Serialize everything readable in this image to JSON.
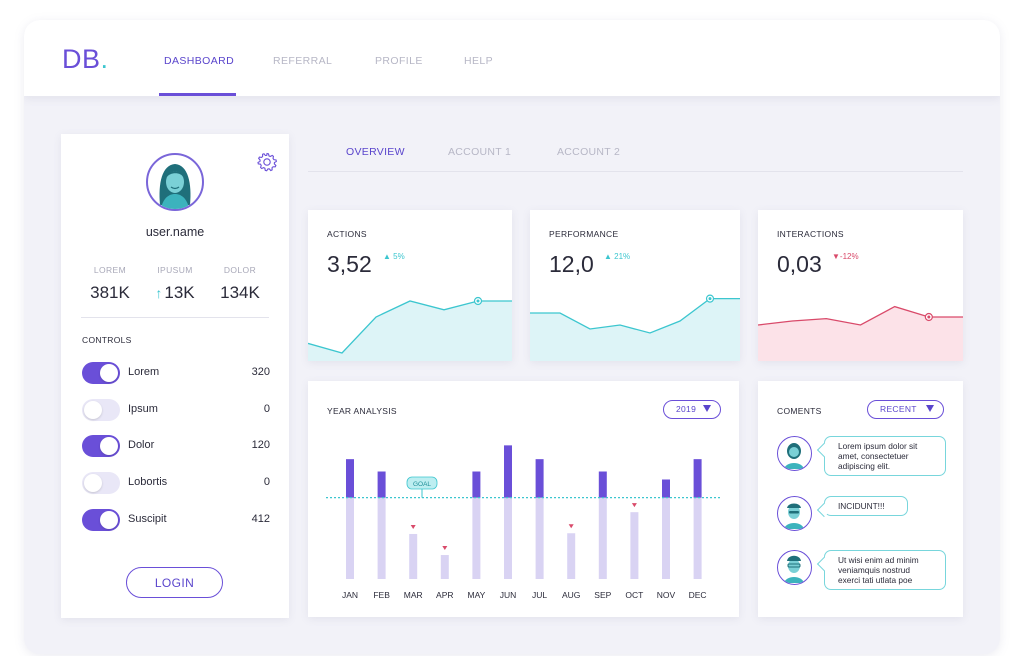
{
  "app": {
    "logo_text": "DB",
    "logo_dot": "."
  },
  "nav": {
    "items": [
      "DASHBOARD",
      "REFERRAL",
      "PROFILE",
      "HELP"
    ],
    "active": 0
  },
  "profile": {
    "username": "user.name",
    "stats": [
      {
        "label": "LOREM",
        "value": "381K",
        "arrow": ""
      },
      {
        "label": "IPUSUM",
        "value": "13K",
        "arrow": "↑"
      },
      {
        "label": "DOLOR",
        "value": "134K",
        "arrow": ""
      }
    ],
    "controls_title": "CONTROLS",
    "controls": [
      {
        "label": "Lorem",
        "value": "320",
        "on": true
      },
      {
        "label": "Ipsum",
        "value": "0",
        "on": false
      },
      {
        "label": "Dolor",
        "value": "120",
        "on": true
      },
      {
        "label": "Lobortis",
        "value": "0",
        "on": false
      },
      {
        "label": "Suscipit",
        "value": "412",
        "on": true
      }
    ],
    "login_label": "LOGIN"
  },
  "tabs": {
    "items": [
      "OVERVIEW",
      "ACCOUNT 1",
      "ACCOUNT 2"
    ],
    "active": 0
  },
  "kpis": [
    {
      "title": "ACTIONS",
      "value": "3,52",
      "delta": "5%",
      "direction": "up",
      "color": "#3cc6cf",
      "fill": "#ddf4f7",
      "trend": [
        0.22,
        0.1,
        0.55,
        0.75,
        0.64,
        0.75,
        0.75
      ]
    },
    {
      "title": "PERFORMANCE",
      "value": "12,0",
      "delta": "21%",
      "direction": "up",
      "color": "#3cc6cf",
      "fill": "#ddf4f7",
      "trend": [
        0.6,
        0.6,
        0.4,
        0.45,
        0.35,
        0.5,
        0.78,
        0.78
      ]
    },
    {
      "title": "INTERACTIONS",
      "value": "0,03",
      "delta": "-12%",
      "direction": "down",
      "color": "#d94a6a",
      "fill": "#fce2e8",
      "trend": [
        0.45,
        0.5,
        0.53,
        0.45,
        0.68,
        0.55,
        0.55
      ]
    }
  ],
  "year_analysis": {
    "title": "YEAR ANALYSIS",
    "year_select": "2019",
    "goal_label": "GOAL",
    "chart_data": {
      "type": "bar",
      "categories": [
        "JAN",
        "FEB",
        "MAR",
        "APR",
        "MAY",
        "JUN",
        "JUL",
        "AUG",
        "SEP",
        "OCT",
        "NOV",
        "DEC"
      ],
      "values": [
        165,
        148,
        62,
        33,
        148,
        184,
        165,
        63,
        148,
        92,
        137,
        165
      ],
      "goal": 112,
      "below_goal_markers": [
        "MAR",
        "APR",
        "AUG",
        "OCT"
      ]
    }
  },
  "comments": {
    "title": "COMENTS",
    "filter": "RECENT",
    "items": [
      {
        "lines": [
          "Lorem ipsum dolor sit",
          "amet, consectetuer",
          "adipiscing elit."
        ]
      },
      {
        "lines": [
          "INCIDUNT!!!"
        ]
      },
      {
        "lines": [
          "Ut wisi enim ad minim",
          "veniamquis nostrud",
          "exerci tati utlata poe"
        ]
      }
    ]
  },
  "colors": {
    "accent": "#6a4fd8",
    "teal": "#3cc6cf",
    "red": "#d94a6a",
    "bar_light": "#d9d3f3"
  },
  "icons": {
    "settings": "gear-icon",
    "dropdown": "triangle-down-icon"
  }
}
